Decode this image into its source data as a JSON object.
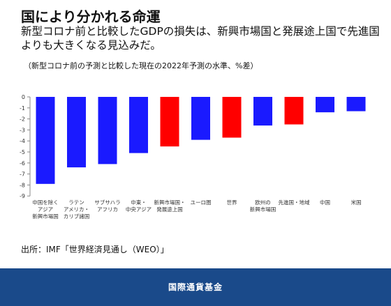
{
  "heading": {
    "title": "国により分かれる命運",
    "subtitle": "新型コロナ前と比較したGDPの損失は、新興市場国と発展途上国で先進国よりも大きくなる見込みだ。",
    "note": "（新型コロナ前の予測と比較した現在の2022年予測の水準、%差）"
  },
  "source": "出所：IMF「世界経済見通し（WEO）」",
  "footer": {
    "org": "国際通貨基金"
  },
  "colors": {
    "blue": "#1a1aff",
    "red": "#ff0000",
    "footer": "#1a4a8a"
  },
  "chart_data": {
    "type": "bar",
    "categories": [
      [
        "中国を除く",
        "アジア",
        "新興市場国"
      ],
      [
        "ラテン",
        "アメリカ・",
        "カリブ諸国"
      ],
      [
        "サブサハラ",
        "アフリカ"
      ],
      [
        "中東・",
        "中央アジア"
      ],
      [
        "新興市場国・",
        "発展途上国"
      ],
      [
        "ユーロ圏"
      ],
      [
        "世界"
      ],
      [
        "欧州の",
        "新興市場国"
      ],
      [
        "先進国・地域"
      ],
      [
        "中国"
      ],
      [
        "米国"
      ]
    ],
    "values": [
      -7.9,
      -6.4,
      -6.1,
      -5.1,
      -4.5,
      -3.9,
      -3.7,
      -2.6,
      -2.5,
      -1.4,
      -1.3
    ],
    "bar_colors": [
      "blue",
      "blue",
      "blue",
      "blue",
      "red",
      "blue",
      "red",
      "blue",
      "red",
      "blue",
      "blue"
    ],
    "yticks": [
      0,
      -1,
      -2,
      -3,
      -4,
      -5,
      -6,
      -7,
      -8,
      -9
    ],
    "ylim": [
      -9,
      0
    ],
    "grid": false,
    "legend": "none"
  }
}
